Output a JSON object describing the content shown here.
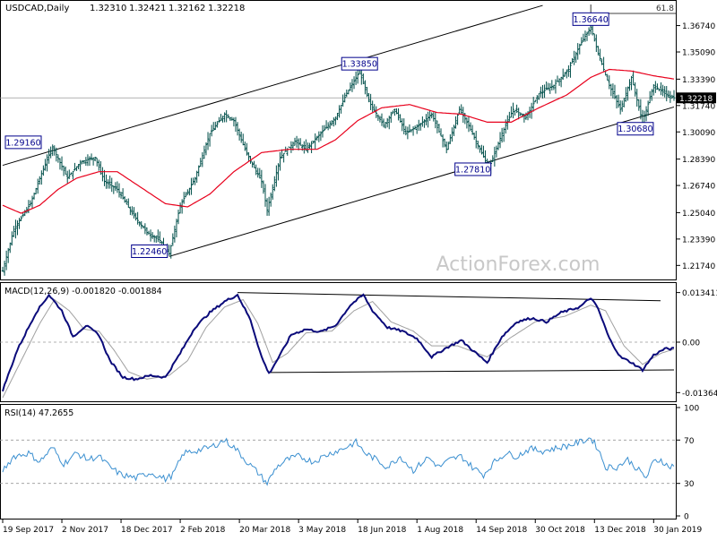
{
  "colors": {
    "bars": "#004f4a",
    "ma": "#e8001c",
    "macd": "#0a0a7a",
    "signal": "#a0a0a0",
    "rsi": "#3a8fd0",
    "grid": "#888888",
    "watermark": "#c8c8c8"
  },
  "chart_data": [
    {
      "type": "candlestick-bars",
      "title": "USDCAD,Daily",
      "ohlc": {
        "open": "1.32310",
        "high": "1.32421",
        "low": "1.32162",
        "close": "1.32218"
      },
      "last_price_label": "1.32218",
      "top_right_label": "61.8",
      "watermark": "ActionForex.com",
      "ylim": [
        1.2103,
        1.3806
      ],
      "y_ticks": [
        1.3674,
        1.3509,
        1.3339,
        1.3174,
        1.3009,
        1.2839,
        1.2674,
        1.2504,
        1.2339,
        1.2174
      ],
      "y_tick_labels": [
        "1.36740",
        "1.35090",
        "1.33390",
        "1.31740",
        "1.30090",
        "1.28390",
        "1.26740",
        "1.25040",
        "1.23390",
        "1.21740"
      ],
      "x_ticks": [
        "19 Sep 2017",
        "2 Nov 2017",
        "18 Dec 2017",
        "2 Feb 2018",
        "20 Mar 2018",
        "3 May 2018",
        "18 Jun 2018",
        "1 Aug 2018",
        "14 Sep 2018",
        "30 Oct 2018",
        "13 Dec 2018",
        "30 Jan 2019"
      ],
      "x_tick_index": [
        0,
        32,
        64,
        96,
        128,
        160,
        192,
        224,
        256,
        288,
        320,
        352
      ],
      "annotations": [
        {
          "label": "1.29160",
          "index": 27,
          "value": 1.2916
        },
        {
          "label": "1.22460",
          "index": 90,
          "value": 1.2246
        },
        {
          "label": "1.33850",
          "index": 193,
          "value": 1.3385
        },
        {
          "label": "1.27810",
          "index": 263,
          "value": 1.2781
        },
        {
          "label": "1.36640",
          "index": 318,
          "value": 1.3664
        },
        {
          "label": "1.30680",
          "index": 346,
          "value": 1.3068
        }
      ],
      "keypoints": [
        [
          0,
          1.214
        ],
        [
          6,
          1.24
        ],
        [
          15,
          1.256
        ],
        [
          22,
          1.278
        ],
        [
          27,
          1.2916
        ],
        [
          35,
          1.272
        ],
        [
          42,
          1.282
        ],
        [
          50,
          1.285
        ],
        [
          55,
          1.27
        ],
        [
          62,
          1.265
        ],
        [
          70,
          1.25
        ],
        [
          78,
          1.238
        ],
        [
          85,
          1.233
        ],
        [
          90,
          1.2246
        ],
        [
          96,
          1.255
        ],
        [
          104,
          1.272
        ],
        [
          112,
          1.3
        ],
        [
          120,
          1.312
        ],
        [
          125,
          1.308
        ],
        [
          132,
          1.287
        ],
        [
          140,
          1.27
        ],
        [
          143,
          1.252
        ],
        [
          150,
          1.285
        ],
        [
          158,
          1.295
        ],
        [
          164,
          1.29
        ],
        [
          172,
          1.3
        ],
        [
          180,
          1.31
        ],
        [
          186,
          1.325
        ],
        [
          193,
          1.3385
        ],
        [
          198,
          1.32
        ],
        [
          206,
          1.305
        ],
        [
          212,
          1.315
        ],
        [
          218,
          1.3
        ],
        [
          225,
          1.305
        ],
        [
          232,
          1.312
        ],
        [
          240,
          1.29
        ],
        [
          247,
          1.315
        ],
        [
          252,
          1.305
        ],
        [
          258,
          1.29
        ],
        [
          263,
          1.2781
        ],
        [
          270,
          1.3
        ],
        [
          276,
          1.315
        ],
        [
          283,
          1.31
        ],
        [
          290,
          1.325
        ],
        [
          298,
          1.33
        ],
        [
          306,
          1.34
        ],
        [
          312,
          1.355
        ],
        [
          318,
          1.3664
        ],
        [
          322,
          1.35
        ],
        [
          328,
          1.33
        ],
        [
          334,
          1.315
        ],
        [
          340,
          1.335
        ],
        [
          346,
          1.3068
        ],
        [
          352,
          1.33
        ],
        [
          358,
          1.325
        ],
        [
          363,
          1.3222
        ]
      ],
      "ma_points": [
        [
          0,
          1.255
        ],
        [
          10,
          1.25
        ],
        [
          20,
          1.255
        ],
        [
          30,
          1.265
        ],
        [
          40,
          1.272
        ],
        [
          52,
          1.276
        ],
        [
          62,
          1.276
        ],
        [
          75,
          1.266
        ],
        [
          88,
          1.256
        ],
        [
          100,
          1.254
        ],
        [
          112,
          1.262
        ],
        [
          125,
          1.276
        ],
        [
          140,
          1.288
        ],
        [
          155,
          1.29
        ],
        [
          170,
          1.29
        ],
        [
          180,
          1.296
        ],
        [
          192,
          1.308
        ],
        [
          205,
          1.316
        ],
        [
          220,
          1.318
        ],
        [
          235,
          1.313
        ],
        [
          248,
          1.312
        ],
        [
          262,
          1.307
        ],
        [
          275,
          1.307
        ],
        [
          290,
          1.316
        ],
        [
          305,
          1.324
        ],
        [
          318,
          1.335
        ],
        [
          328,
          1.34
        ],
        [
          340,
          1.339
        ],
        [
          352,
          1.336
        ],
        [
          363,
          1.334
        ]
      ],
      "channel_upper": [
        [
          0,
          1.28
        ],
        [
          292,
          1.38
        ]
      ],
      "channel_lower": [
        [
          90,
          1.223
        ],
        [
          363,
          1.3165
        ]
      ]
    },
    {
      "type": "line",
      "title": "MACD(12,26,9) -0.001820 -0.001884",
      "series": [
        {
          "name": "MACD",
          "points": [
            [
              0,
              -0.013
            ],
            [
              8,
              -0.002
            ],
            [
              18,
              0.008
            ],
            [
              25,
              0.0128
            ],
            [
              32,
              0.0085
            ],
            [
              38,
              0.0015
            ],
            [
              45,
              0.0045
            ],
            [
              52,
              0.002
            ],
            [
              58,
              -0.005
            ],
            [
              65,
              -0.0095
            ],
            [
              72,
              -0.01
            ],
            [
              80,
              -0.009
            ],
            [
              88,
              -0.0095
            ],
            [
              96,
              -0.003
            ],
            [
              104,
              0.004
            ],
            [
              112,
              0.008
            ],
            [
              120,
              0.011
            ],
            [
              127,
              0.0128
            ],
            [
              134,
              0.006
            ],
            [
              140,
              -0.004
            ],
            [
              144,
              -0.0085
            ],
            [
              150,
              -0.0035
            ],
            [
              156,
              0.002
            ],
            [
              164,
              0.0035
            ],
            [
              172,
              0.0028
            ],
            [
              180,
              0.0045
            ],
            [
              188,
              0.01
            ],
            [
              195,
              0.0128
            ],
            [
              200,
              0.0085
            ],
            [
              208,
              0.004
            ],
            [
              216,
              0.003
            ],
            [
              224,
              0.001
            ],
            [
              232,
              -0.004
            ],
            [
              240,
              -0.0015
            ],
            [
              248,
              0.0005
            ],
            [
              256,
              -0.003
            ],
            [
              262,
              -0.0055
            ],
            [
              270,
              0.0015
            ],
            [
              278,
              0.0055
            ],
            [
              286,
              0.0065
            ],
            [
              294,
              0.0055
            ],
            [
              302,
              0.008
            ],
            [
              312,
              0.0095
            ],
            [
              318,
              0.012
            ],
            [
              322,
              0.009
            ],
            [
              328,
              0.001
            ],
            [
              334,
              -0.004
            ],
            [
              340,
              -0.0055
            ],
            [
              346,
              -0.0075
            ],
            [
              352,
              -0.0035
            ],
            [
              358,
              -0.0018
            ],
            [
              363,
              -0.0018
            ]
          ]
        },
        {
          "name": "Signal",
          "points": [
            [
              0,
              -0.015
            ],
            [
              10,
              -0.005
            ],
            [
              20,
              0.005
            ],
            [
              28,
              0.0115
            ],
            [
              36,
              0.0085
            ],
            [
              44,
              0.0035
            ],
            [
              52,
              0.003
            ],
            [
              60,
              -0.002
            ],
            [
              68,
              -0.008
            ],
            [
              78,
              -0.01
            ],
            [
              90,
              -0.009
            ],
            [
              100,
              -0.005
            ],
            [
              110,
              0.004
            ],
            [
              120,
              0.0095
            ],
            [
              130,
              0.0115
            ],
            [
              138,
              0.005
            ],
            [
              146,
              -0.0055
            ],
            [
              154,
              -0.003
            ],
            [
              164,
              0.0025
            ],
            [
              178,
              0.003
            ],
            [
              190,
              0.0085
            ],
            [
              200,
              0.011
            ],
            [
              210,
              0.0055
            ],
            [
              222,
              0.003
            ],
            [
              232,
              -0.001
            ],
            [
              246,
              -0.001
            ],
            [
              262,
              -0.004
            ],
            [
              274,
              0.001
            ],
            [
              288,
              0.0055
            ],
            [
              304,
              0.007
            ],
            [
              318,
              0.01
            ],
            [
              326,
              0.0085
            ],
            [
              336,
              -0.001
            ],
            [
              346,
              -0.006
            ],
            [
              356,
              -0.003
            ],
            [
              363,
              -0.0019
            ]
          ]
        }
      ],
      "y_tick_labels": [
        "0.013411",
        "0.00",
        "-0.013644"
      ],
      "ylim": [
        -0.0155,
        0.0155
      ],
      "trendline_upper": [
        [
          127,
          0.0134
        ],
        [
          363,
          0.0112
        ]
      ],
      "trendline_lower": [
        [
          144,
          -0.0082
        ],
        [
          363,
          -0.0075
        ]
      ]
    },
    {
      "type": "line",
      "title": "RSI(14) 47.2655",
      "ylim": [
        0,
        100
      ],
      "y_ticks": [
        100,
        70,
        30,
        0
      ],
      "y_tick_labels": [
        "100",
        "70",
        "30",
        "0"
      ],
      "series": [
        {
          "name": "RSI",
          "points": [
            [
              0,
              42
            ],
            [
              6,
              55
            ],
            [
              14,
              58
            ],
            [
              20,
              50
            ],
            [
              27,
              63
            ],
            [
              33,
              48
            ],
            [
              40,
              58
            ],
            [
              46,
              52
            ],
            [
              52,
              55
            ],
            [
              58,
              45
            ],
            [
              64,
              38
            ],
            [
              72,
              35
            ],
            [
              80,
              40
            ],
            [
              88,
              34
            ],
            [
              92,
              38
            ],
            [
              98,
              58
            ],
            [
              104,
              60
            ],
            [
              112,
              63
            ],
            [
              120,
              70
            ],
            [
              126,
              62
            ],
            [
              132,
              50
            ],
            [
              138,
              40
            ],
            [
              143,
              30
            ],
            [
              148,
              45
            ],
            [
              154,
              52
            ],
            [
              160,
              55
            ],
            [
              168,
              50
            ],
            [
              176,
              57
            ],
            [
              184,
              62
            ],
            [
              191,
              68
            ],
            [
              196,
              58
            ],
            [
              202,
              52
            ],
            [
              208,
              45
            ],
            [
              215,
              55
            ],
            [
              222,
              42
            ],
            [
              230,
              54
            ],
            [
              236,
              45
            ],
            [
              242,
              52
            ],
            [
              248,
              55
            ],
            [
              254,
              45
            ],
            [
              260,
              38
            ],
            [
              266,
              50
            ],
            [
              272,
              58
            ],
            [
              278,
              55
            ],
            [
              285,
              62
            ],
            [
              292,
              60
            ],
            [
              298,
              62
            ],
            [
              306,
              65
            ],
            [
              312,
              68
            ],
            [
              318,
              72
            ],
            [
              322,
              62
            ],
            [
              326,
              45
            ],
            [
              332,
              45
            ],
            [
              338,
              52
            ],
            [
              344,
              42
            ],
            [
              348,
              35
            ],
            [
              352,
              50
            ],
            [
              356,
              52
            ],
            [
              360,
              45
            ],
            [
              363,
              47
            ]
          ]
        }
      ]
    }
  ]
}
